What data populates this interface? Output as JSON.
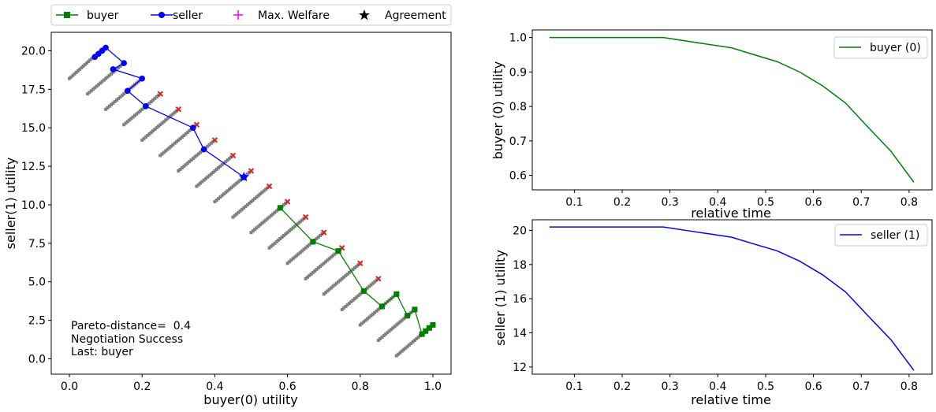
{
  "colors": {
    "buyer": "#008000",
    "seller": "#0000ff",
    "welfare": "#ff00ff",
    "agreement": "#000000",
    "cloud": "#808080",
    "pareto": "#d62728"
  },
  "legend_main": {
    "items": [
      {
        "label": "buyer",
        "icon": "green-line-square-marker"
      },
      {
        "label": "seller",
        "icon": "blue-line-circle-marker"
      },
      {
        "label": "Max. Welfare",
        "icon": "magenta-plus-marker"
      },
      {
        "label": "Agreement",
        "icon": "black-star-marker"
      }
    ]
  },
  "annotations": {
    "line1": "Pareto-distance=  0.4",
    "line2": "Negotiation Success",
    "line3": "Last: buyer"
  },
  "chart_data": [
    {
      "type": "scatter",
      "xlabel": "buyer(0) utility",
      "ylabel": "seller(1) utility",
      "xlim": [
        -0.05,
        1.05
      ],
      "ylim": [
        -1.0,
        21.2
      ],
      "xticks": [
        "0.0",
        "0.2",
        "0.4",
        "0.6",
        "0.8",
        "1.0"
      ],
      "yticks": [
        "0.0",
        "2.5",
        "5.0",
        "7.5",
        "10.0",
        "12.5",
        "15.0",
        "17.5",
        "20.0"
      ],
      "outcome_strips": [
        {
          "x": [
            0.0,
            0.095
          ],
          "y": [
            18.2,
            20.2
          ]
        },
        {
          "x": [
            0.05,
            0.15
          ],
          "y": [
            17.2,
            19.2
          ]
        },
        {
          "x": [
            0.1,
            0.2
          ],
          "y": [
            16.2,
            18.2
          ]
        },
        {
          "x": [
            0.15,
            0.25
          ],
          "y": [
            15.2,
            17.2
          ]
        },
        {
          "x": [
            0.2,
            0.3
          ],
          "y": [
            14.2,
            16.2
          ]
        },
        {
          "x": [
            0.25,
            0.35
          ],
          "y": [
            13.2,
            15.2
          ]
        },
        {
          "x": [
            0.3,
            0.4
          ],
          "y": [
            12.2,
            14.2
          ]
        },
        {
          "x": [
            0.35,
            0.45
          ],
          "y": [
            11.2,
            13.2
          ]
        },
        {
          "x": [
            0.4,
            0.5
          ],
          "y": [
            10.2,
            12.2
          ]
        },
        {
          "x": [
            0.45,
            0.55
          ],
          "y": [
            9.2,
            11.2
          ]
        },
        {
          "x": [
            0.5,
            0.6
          ],
          "y": [
            8.2,
            10.2
          ]
        },
        {
          "x": [
            0.55,
            0.65
          ],
          "y": [
            7.2,
            9.2
          ]
        },
        {
          "x": [
            0.6,
            0.7
          ],
          "y": [
            6.2,
            8.2
          ]
        },
        {
          "x": [
            0.65,
            0.75
          ],
          "y": [
            5.2,
            7.2
          ]
        },
        {
          "x": [
            0.7,
            0.8
          ],
          "y": [
            4.2,
            6.2
          ]
        },
        {
          "x": [
            0.75,
            0.85
          ],
          "y": [
            3.2,
            5.2
          ]
        },
        {
          "x": [
            0.8,
            0.9
          ],
          "y": [
            2.2,
            4.2
          ]
        },
        {
          "x": [
            0.85,
            0.95
          ],
          "y": [
            1.2,
            3.2
          ]
        },
        {
          "x": [
            0.9,
            1.0
          ],
          "y": [
            0.2,
            2.2
          ]
        }
      ],
      "pareto_points": [
        {
          "x": 0.25,
          "y": 17.2
        },
        {
          "x": 0.3,
          "y": 16.2
        },
        {
          "x": 0.35,
          "y": 15.2
        },
        {
          "x": 0.4,
          "y": 14.2
        },
        {
          "x": 0.45,
          "y": 13.2
        },
        {
          "x": 0.5,
          "y": 12.2
        },
        {
          "x": 0.55,
          "y": 11.2
        },
        {
          "x": 0.6,
          "y": 10.2
        },
        {
          "x": 0.65,
          "y": 9.2
        },
        {
          "x": 0.7,
          "y": 8.2
        },
        {
          "x": 0.75,
          "y": 7.2
        },
        {
          "x": 0.8,
          "y": 6.2
        },
        {
          "x": 0.85,
          "y": 5.2
        }
      ],
      "series": [
        {
          "name": "buyer",
          "x": [
            1.0,
            0.99,
            0.98,
            0.97,
            0.95,
            0.93,
            0.9,
            0.86,
            0.81,
            0.74,
            0.67,
            0.58
          ],
          "y": [
            2.2,
            2.0,
            1.8,
            1.6,
            3.2,
            2.8,
            4.2,
            3.4,
            4.4,
            7.0,
            7.6,
            9.8
          ]
        },
        {
          "name": "seller",
          "x": [
            0.07,
            0.08,
            0.09,
            0.1,
            0.15,
            0.12,
            0.2,
            0.16,
            0.21,
            0.34,
            0.37,
            0.48
          ],
          "y": [
            19.6,
            19.8,
            20.0,
            20.2,
            19.2,
            18.8,
            18.2,
            17.4,
            16.4,
            15.0,
            13.6,
            11.8
          ]
        }
      ],
      "agreement": {
        "x": 0.48,
        "y": 11.8
      }
    },
    {
      "type": "line",
      "xlabel": "relative time",
      "ylabel": "buyer (0) utility",
      "xlim": [
        0.012,
        0.848
      ],
      "ylim": [
        0.558,
        1.022
      ],
      "xticks": [
        "0.1",
        "0.2",
        "0.3",
        "0.4",
        "0.5",
        "0.6",
        "0.7",
        "0.8"
      ],
      "yticks": [
        "0.6",
        "0.7",
        "0.8",
        "0.9",
        "1.0"
      ],
      "series": [
        {
          "name": "buyer (0)",
          "x": [
            0.048,
            0.095,
            0.143,
            0.19,
            0.238,
            0.286,
            0.333,
            0.381,
            0.429,
            0.476,
            0.524,
            0.571,
            0.619,
            0.667,
            0.714,
            0.762,
            0.81
          ],
          "y": [
            1.0,
            1.0,
            1.0,
            1.0,
            1.0,
            1.0,
            0.99,
            0.98,
            0.97,
            0.95,
            0.93,
            0.9,
            0.86,
            0.81,
            0.74,
            0.67,
            0.58
          ]
        }
      ]
    },
    {
      "type": "line",
      "xlabel": "relative time",
      "ylabel": "seller (1) utility",
      "xlim": [
        0.012,
        0.848
      ],
      "ylim": [
        11.58,
        20.62
      ],
      "xticks": [
        "0.1",
        "0.2",
        "0.3",
        "0.4",
        "0.5",
        "0.6",
        "0.7",
        "0.8"
      ],
      "yticks": [
        "12",
        "14",
        "16",
        "18",
        "20"
      ],
      "series": [
        {
          "name": "seller (1)",
          "x": [
            0.048,
            0.095,
            0.143,
            0.19,
            0.238,
            0.286,
            0.333,
            0.381,
            0.429,
            0.476,
            0.524,
            0.571,
            0.619,
            0.667,
            0.714,
            0.762,
            0.81
          ],
          "y": [
            20.2,
            20.2,
            20.2,
            20.2,
            20.2,
            20.2,
            20.0,
            19.8,
            19.6,
            19.2,
            18.8,
            18.2,
            17.4,
            16.4,
            15.0,
            13.6,
            11.8
          ]
        }
      ]
    }
  ]
}
